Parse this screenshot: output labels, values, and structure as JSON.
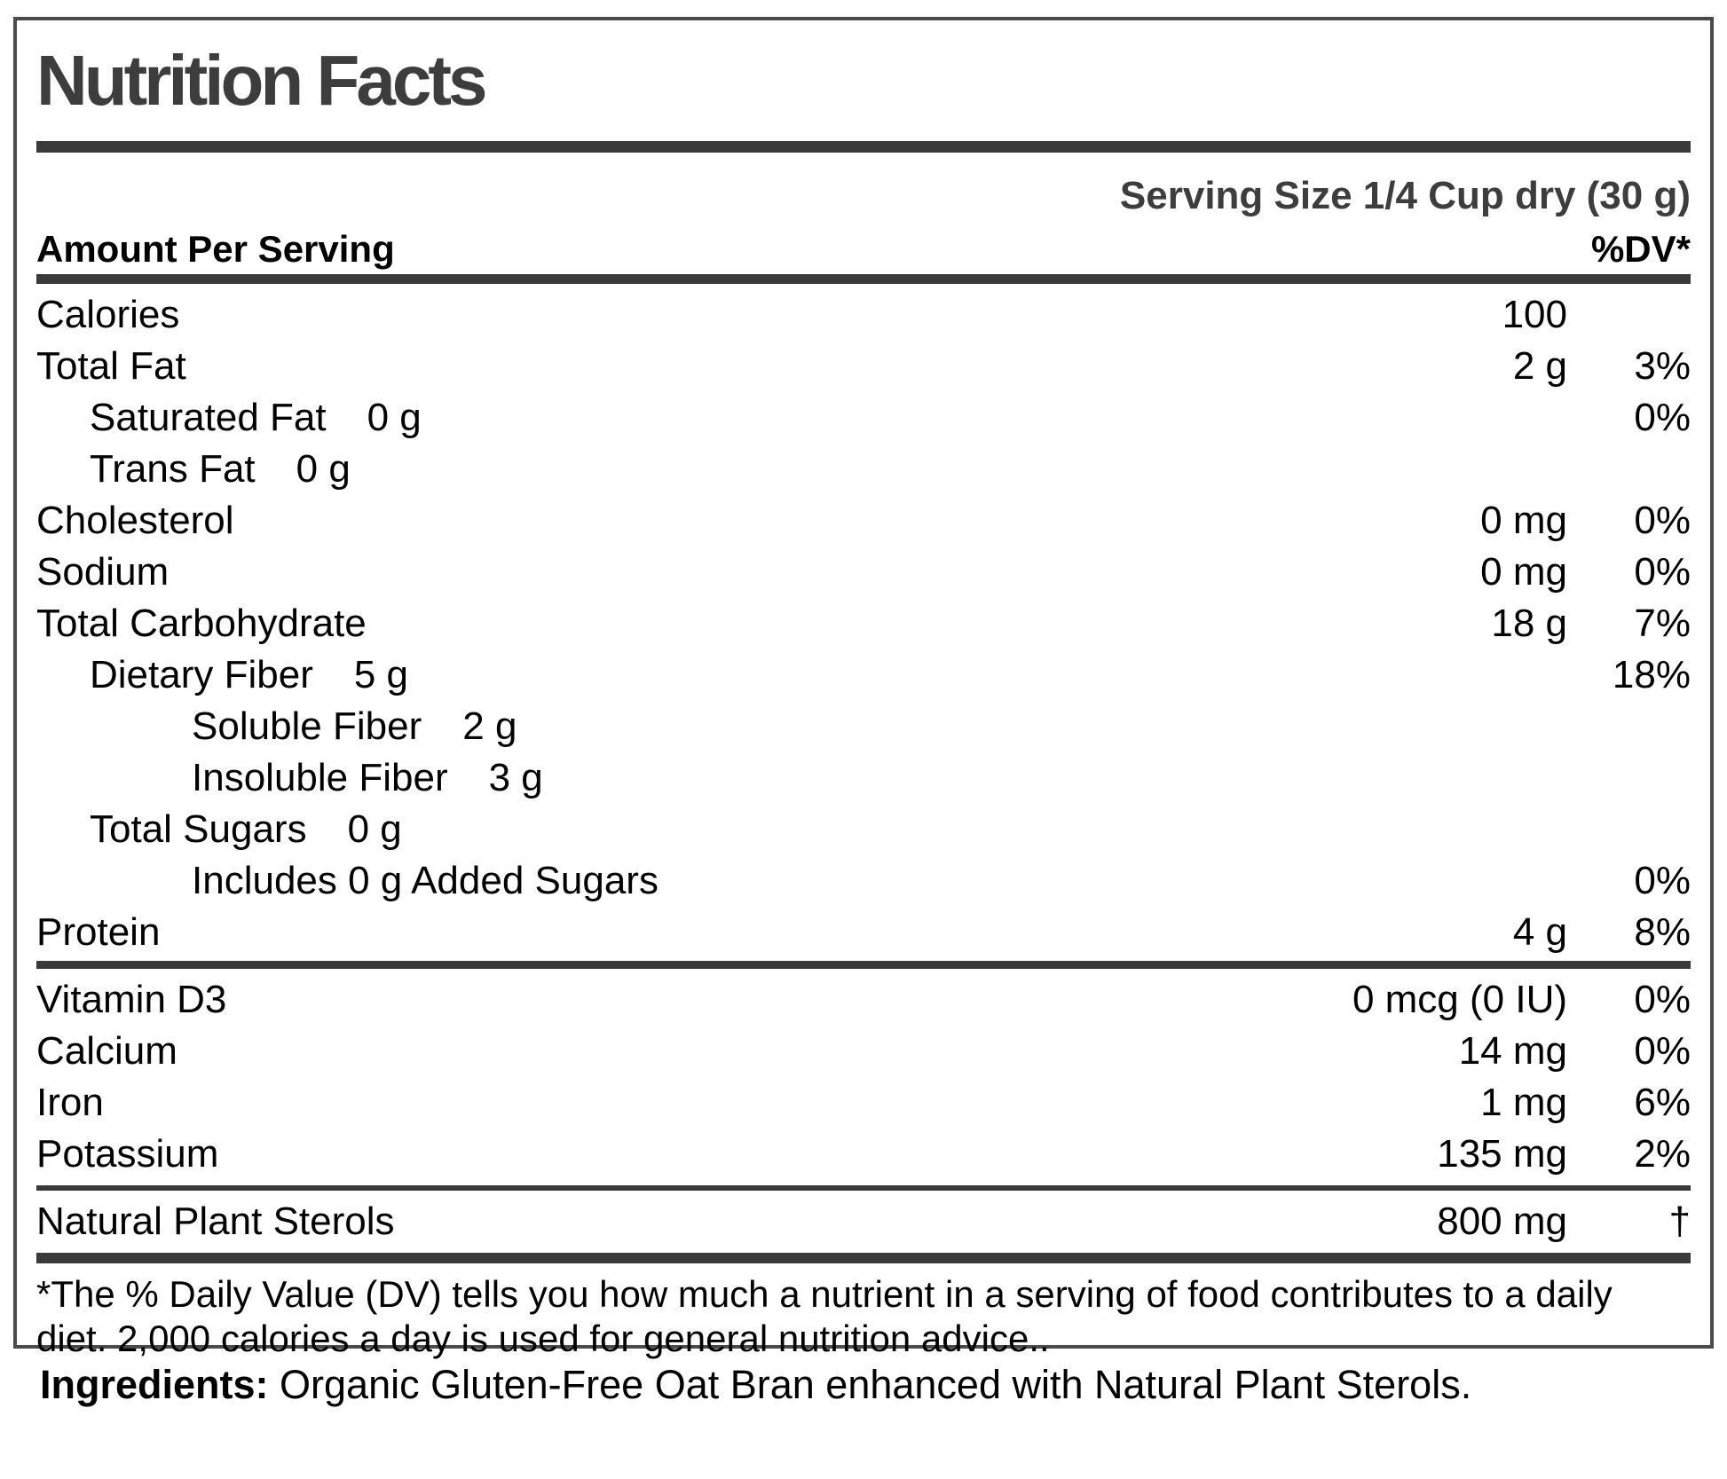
{
  "colors": {
    "accent_dark": "#3a3a3a",
    "title_gray": "#3d3d3d",
    "body_text": "#000000",
    "background": "#ffffff"
  },
  "label": {
    "title": "Nutrition Facts",
    "serving_size": "Serving Size 1/4 Cup dry (30 g)",
    "amount_per_serving": "Amount Per Serving",
    "dv_header": "%DV*",
    "rows_main": [
      {
        "name": "Calories",
        "indent": 0,
        "inline_amount": "",
        "amount": "100",
        "dv": ""
      },
      {
        "name": "Total Fat",
        "indent": 0,
        "inline_amount": "",
        "amount": "2 g",
        "dv": "3%"
      },
      {
        "name": "Saturated Fat",
        "indent": 1,
        "inline_amount": "0 g",
        "amount": "",
        "dv": "0%"
      },
      {
        "name": "Trans Fat",
        "indent": 1,
        "inline_amount": "0 g",
        "amount": "",
        "dv": ""
      },
      {
        "name": "Cholesterol",
        "indent": 0,
        "inline_amount": "",
        "amount": "0 mg",
        "dv": "0%"
      },
      {
        "name": "Sodium",
        "indent": 0,
        "inline_amount": "",
        "amount": "0 mg",
        "dv": "0%"
      },
      {
        "name": "Total Carbohydrate",
        "indent": 0,
        "inline_amount": "",
        "amount": "18 g",
        "dv": "7%"
      },
      {
        "name": "Dietary Fiber",
        "indent": 1,
        "inline_amount": "5 g",
        "amount": "",
        "dv": "18%"
      },
      {
        "name": "Soluble Fiber",
        "indent": 2,
        "inline_amount": "2 g",
        "amount": "",
        "dv": ""
      },
      {
        "name": "Insoluble Fiber",
        "indent": 2,
        "inline_amount": "3 g",
        "amount": "",
        "dv": ""
      },
      {
        "name": "Total Sugars",
        "indent": 1,
        "inline_amount": "0 g",
        "amount": "",
        "dv": ""
      },
      {
        "name": "Includes 0 g Added Sugars",
        "indent": 2,
        "inline_amount": "",
        "amount": "",
        "dv": "0%"
      },
      {
        "name": "Protein",
        "indent": 0,
        "inline_amount": "",
        "amount": "4 g",
        "dv": "8%"
      }
    ],
    "rows_vitamins": [
      {
        "name": "Vitamin D3",
        "indent": 0,
        "inline_amount": "",
        "amount": "0 mcg (0 IU)",
        "dv": "0%"
      },
      {
        "name": "Calcium",
        "indent": 0,
        "inline_amount": "",
        "amount": "14 mg",
        "dv": "0%"
      },
      {
        "name": "Iron",
        "indent": 0,
        "inline_amount": "",
        "amount": "1 mg",
        "dv": "6%"
      },
      {
        "name": "Potassium",
        "indent": 0,
        "inline_amount": "",
        "amount": "135 mg",
        "dv": "2%"
      }
    ],
    "rows_sterols": [
      {
        "name": "Natural Plant Sterols",
        "indent": 0,
        "inline_amount": "",
        "amount": "800 mg",
        "dv": "†"
      }
    ],
    "footnote_line1": "*The % Daily Value (DV) tells you how much a nutrient in a serving of food contributes to a daily",
    "footnote_line2": "diet. 2,000 calories a day is used for general nutrition advice..",
    "ingredients_label": "Ingredients:",
    "ingredients_text": " Organic Gluten-Free Oat Bran enhanced with Natural Plant Sterols."
  }
}
